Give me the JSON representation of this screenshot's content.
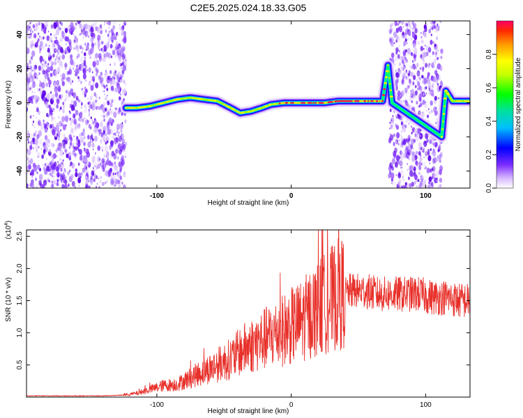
{
  "title": "C2E5.2025.024.18.33.G05",
  "chart_data": [
    {
      "type": "heatmap",
      "xlabel": "Height of straight line (km)",
      "ylabel": "Frequency (Hz)",
      "xlim": [
        -197,
        133
      ],
      "ylim": [
        -50,
        48
      ],
      "x_ticks": [
        -100,
        0,
        100
      ],
      "y_ticks": [
        -40,
        -20,
        0,
        20,
        40
      ],
      "colorbar": {
        "label": "Normalized spectral amplitude",
        "range": [
          0,
          1
        ],
        "ticks": [
          0.0,
          0.2,
          0.4,
          0.6,
          0.8
        ]
      },
      "noise_regions": [
        [
          -197,
          -123
        ],
        [
          73,
          112
        ]
      ],
      "signal_trace": {
        "x": [
          -123,
          -115,
          -105,
          -95,
          -85,
          -75,
          -65,
          -55,
          -45,
          -38,
          -30,
          -22,
          -15,
          -5,
          5,
          15,
          25,
          35,
          45,
          55,
          62,
          68,
          72,
          75,
          112,
          115,
          120,
          125,
          133
        ],
        "freq": [
          -3,
          -3,
          -2,
          0,
          2,
          3,
          2,
          1,
          -3,
          -6,
          -5,
          -3,
          -1,
          0,
          0,
          0,
          0,
          1,
          1,
          1,
          1,
          1,
          22,
          0,
          -20,
          7,
          1,
          1,
          1
        ]
      }
    },
    {
      "type": "line",
      "xlabel": "Height of straight line (km)",
      "ylabel": "SNR (10 * v/v)",
      "y_multiplier": "(x10",
      "y_multiplier_exp": "4",
      "y_multiplier_close": ")",
      "xlim": [
        -197,
        133
      ],
      "ylim": [
        0,
        2.6
      ],
      "x_ticks": [
        -100,
        0,
        100
      ],
      "y_ticks": [
        0.5,
        1.0,
        1.5,
        2.0,
        2.5
      ],
      "color": "#e8302a",
      "series": [
        {
          "x": [
            -197,
            -180,
            -160,
            -140,
            -125,
            -115,
            -105,
            -95,
            -85,
            -75,
            -65,
            -55,
            -45,
            -35,
            -25,
            -15,
            -5,
            5,
            15,
            25,
            35,
            45,
            55,
            65,
            75,
            85,
            95,
            105,
            115,
            125,
            133
          ],
          "values": [
            0.02,
            0.02,
            0.02,
            0.02,
            0.03,
            0.06,
            0.12,
            0.18,
            0.2,
            0.3,
            0.4,
            0.5,
            0.6,
            0.75,
            0.85,
            0.95,
            1.05,
            1.15,
            1.3,
            1.45,
            1.6,
            1.65,
            1.65,
            1.6,
            1.6,
            1.6,
            1.6,
            1.55,
            1.55,
            1.5,
            1.5
          ]
        }
      ]
    }
  ]
}
